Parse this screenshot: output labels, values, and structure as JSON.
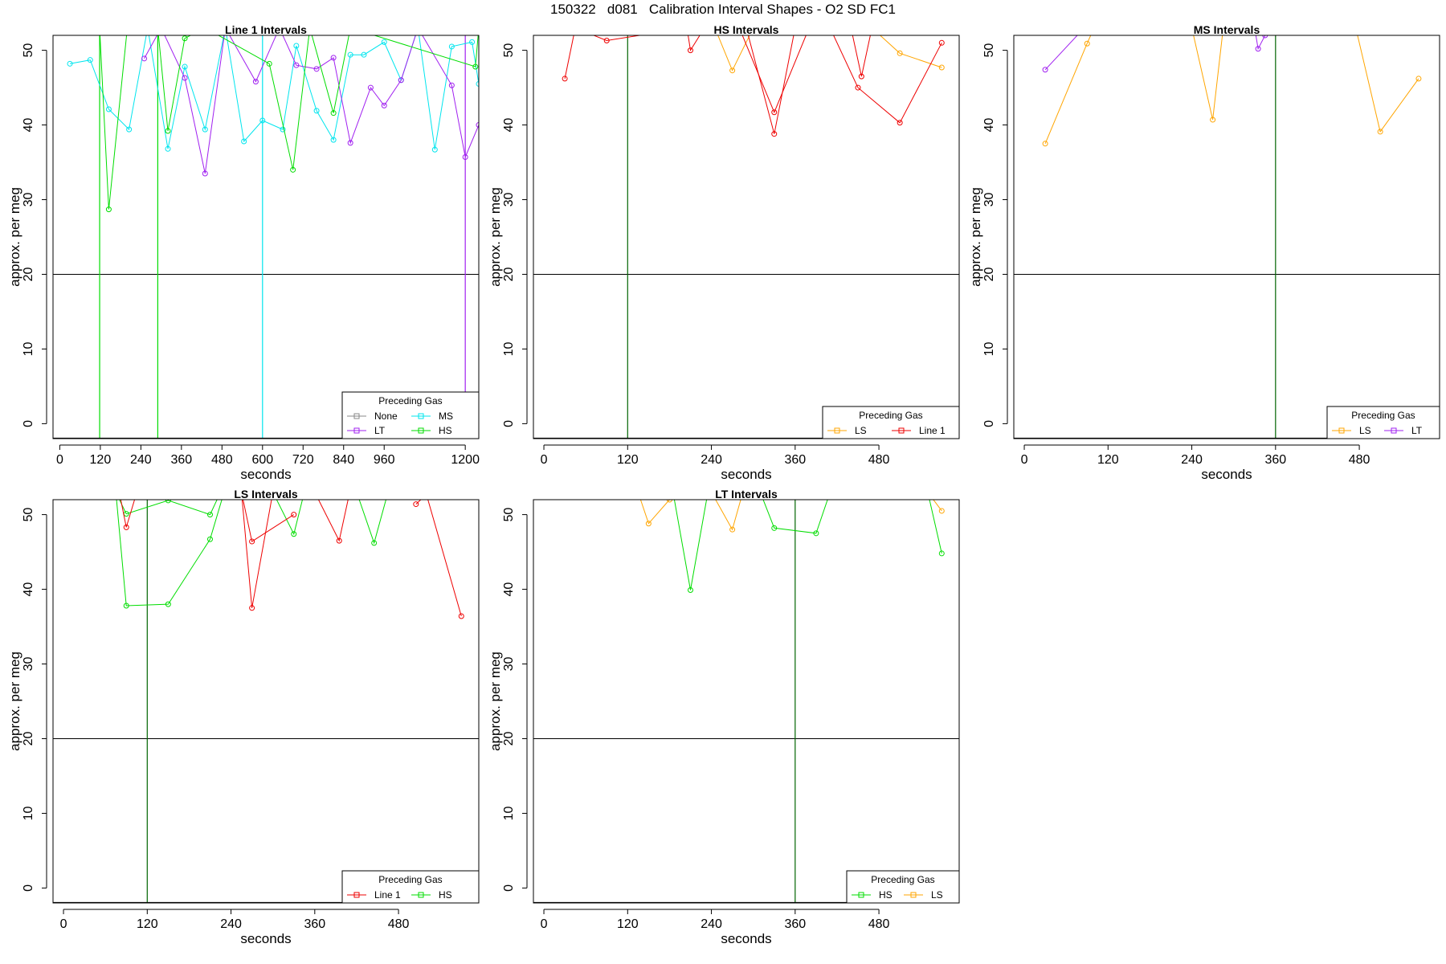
{
  "figure": {
    "title": "150322   d081   Calibration Interval Shapes - O2 SD FC1"
  },
  "colors": {
    "None": "#888888",
    "LT": "#a020f0",
    "MS": "#00e5ee",
    "HS": "#00dd00",
    "LS": "#ffa500",
    "Line 1": "#ee0000",
    "axis": "#000000",
    "hline": "#000000",
    "vline_default": "#006400"
  },
  "chart_data": [
    {
      "type": "line",
      "title": "Line 1 Intervals",
      "xlabel": "seconds",
      "ylabel": "approx. per meg",
      "xlim": [
        -20,
        1240
      ],
      "ylim": [
        -2,
        52
      ],
      "xticks": [
        0,
        120,
        240,
        360,
        480,
        600,
        720,
        840,
        960,
        1200
      ],
      "yticks": [
        0,
        10,
        20,
        30,
        40,
        50
      ],
      "hline": 20,
      "vlines": [
        {
          "x": 118,
          "series": "HS"
        },
        {
          "x": 290,
          "series": "HS"
        },
        {
          "x": 600,
          "series": "MS"
        },
        {
          "x": 1200,
          "series": "LT"
        }
      ],
      "legend": {
        "title": "Preceding Gas",
        "position": "bottom-right",
        "columns": 2,
        "entries": [
          "None",
          "LT",
          "MS",
          "HS"
        ]
      },
      "series": [
        {
          "name": "MS",
          "x": [
            30,
            90,
            145,
            205,
            260,
            320,
            370,
            430,
            490,
            545,
            600,
            660,
            700,
            760,
            810,
            860,
            900,
            960,
            1010,
            1060,
            1110,
            1160,
            1220,
            1240
          ],
          "y": [
            48.2,
            48.7,
            42.1,
            39.4,
            53,
            36.8,
            47.8,
            39.4,
            53,
            37.8,
            40.6,
            39.4,
            50.6,
            41.9,
            38,
            49.4,
            49.4,
            51.1,
            46,
            53,
            36.7,
            50.5,
            51.1,
            45.5
          ]
        },
        {
          "name": "LT",
          "x": [
            250,
            300,
            370,
            430,
            490,
            580,
            650,
            700,
            760,
            810,
            860,
            920,
            960,
            1010,
            1060,
            1160,
            1200,
            1240
          ],
          "y": [
            48.9,
            53,
            46.3,
            33.5,
            53,
            45.8,
            53,
            48,
            47.5,
            49,
            37.6,
            45,
            42.6,
            46,
            53,
            45.3,
            35.7,
            40
          ]
        },
        {
          "name": "HS",
          "x": [
            118,
            145,
            200,
            290,
            320,
            370,
            430,
            620,
            690,
            740,
            810,
            860,
            1230,
            1240
          ],
          "y": [
            53,
            28.7,
            53,
            53,
            39.2,
            51.6,
            53,
            48.2,
            34,
            53,
            41.6,
            53,
            47.8,
            53
          ]
        }
      ]
    },
    {
      "type": "line",
      "title": "HS Intervals",
      "xlabel": "seconds",
      "ylabel": "approx. per meg",
      "xlim": [
        -15,
        595
      ],
      "ylim": [
        -2,
        52
      ],
      "xticks": [
        0,
        120,
        240,
        360,
        480
      ],
      "yticks": [
        0,
        10,
        20,
        30,
        40,
        50
      ],
      "hline": 20,
      "vlines": [
        {
          "x": 120,
          "series": "default"
        }
      ],
      "legend": {
        "title": "Preceding Gas",
        "position": "bottom-right",
        "columns": 2,
        "entries": [
          "LS",
          "Line 1"
        ]
      },
      "series": [
        {
          "name": "LS",
          "x": [
            245,
            270,
            300,
            470,
            510,
            570
          ],
          "y": [
            53,
            47.3,
            53,
            53,
            49.6,
            47.7
          ]
        },
        {
          "name": "Line 1",
          "x": [
            30,
            45,
            90,
            205,
            210,
            230,
            290,
            330,
            360,
            410,
            450,
            510,
            570
          ],
          "y": [
            46.2,
            53,
            51.3,
            53,
            50,
            53,
            53,
            38.8,
            53,
            53,
            45,
            40.3,
            51
          ]
        },
        {
          "name": "Line 1",
          "x": [
            280,
            330,
            380,
            440,
            455,
            470
          ],
          "y": [
            53,
            41.7,
            53,
            53,
            46.5,
            53
          ]
        }
      ]
    },
    {
      "type": "line",
      "title": "MS Intervals",
      "xlabel": "seconds",
      "ylabel": "approx. per meg",
      "xlim": [
        -15,
        595
      ],
      "ylim": [
        -2,
        52
      ],
      "xticks": [
        0,
        120,
        240,
        360,
        480
      ],
      "yticks": [
        0,
        10,
        20,
        30,
        40,
        50
      ],
      "hline": 20,
      "vlines": [
        {
          "x": 360,
          "series": "default"
        }
      ],
      "legend": {
        "title": "Preceding Gas",
        "position": "bottom-right",
        "columns": 2,
        "entries": [
          "LS",
          "LT"
        ]
      },
      "series": [
        {
          "name": "LS",
          "x": [
            30,
            90,
            100,
            240,
            270,
            285,
            475,
            510,
            565
          ],
          "y": [
            37.5,
            50.9,
            53,
            53,
            40.7,
            53,
            53,
            39.1,
            46.2
          ]
        },
        {
          "name": "LT",
          "x": [
            30,
            80,
            330,
            335,
            345
          ],
          "y": [
            47.4,
            52.4,
            53,
            50.2,
            52
          ]
        }
      ]
    },
    {
      "type": "line",
      "title": "LS Intervals",
      "xlabel": "seconds",
      "ylabel": "approx. per meg",
      "xlim": [
        -15,
        595
      ],
      "ylim": [
        -2,
        52
      ],
      "xticks": [
        0,
        120,
        240,
        360,
        480
      ],
      "yticks": [
        0,
        10,
        20,
        30,
        40,
        50
      ],
      "hline": 20,
      "vlines": [
        {
          "x": 120,
          "series": "default"
        }
      ],
      "legend": {
        "title": "Preceding Gas",
        "position": "bottom-right",
        "columns": 2,
        "entries": [
          "Line 1",
          "HS"
        ]
      },
      "series": [
        {
          "name": "HS",
          "x": [
            75,
            90,
            150,
            210,
            225
          ],
          "y": [
            53,
            50.1,
            51.9,
            50,
            53
          ]
        },
        {
          "name": "HS",
          "x": [
            75,
            90,
            150,
            210,
            230
          ],
          "y": [
            53,
            37.8,
            38,
            46.7,
            53
          ]
        },
        {
          "name": "HS",
          "x": [
            300,
            330,
            345,
            420,
            445,
            465
          ],
          "y": [
            53,
            47.4,
            53,
            53,
            46.2,
            53
          ]
        },
        {
          "name": "Line 1",
          "x": [
            80,
            90,
            105
          ],
          "y": [
            53,
            48.3,
            53
          ]
        },
        {
          "name": "Line 1",
          "x": [
            255,
            270,
            330
          ],
          "y": [
            53,
            46.4,
            50
          ]
        },
        {
          "name": "Line 1",
          "x": [
            255,
            270,
            300,
            360,
            395,
            410
          ],
          "y": [
            53,
            37.5,
            53,
            53,
            46.5,
            53
          ]
        },
        {
          "name": "Line 1",
          "x": [
            505,
            520,
            570
          ],
          "y": [
            51.4,
            52.7,
            36.4
          ]
        }
      ]
    },
    {
      "type": "line",
      "title": "LT Intervals",
      "xlabel": "seconds",
      "ylabel": "approx. per meg",
      "xlim": [
        -15,
        595
      ],
      "ylim": [
        -2,
        52
      ],
      "xticks": [
        0,
        120,
        240,
        360,
        480
      ],
      "yticks": [
        0,
        10,
        20,
        30,
        40,
        50
      ],
      "hline": 20,
      "vlines": [
        {
          "x": 360,
          "series": "default"
        }
      ],
      "legend": {
        "title": "Preceding Gas",
        "position": "bottom-right",
        "columns": 2,
        "entries": [
          "HS",
          "LS"
        ]
      },
      "series": [
        {
          "name": "LS",
          "x": [
            135,
            150,
            180,
            240,
            270,
            285
          ],
          "y": [
            53,
            48.8,
            52,
            53,
            48,
            53
          ]
        },
        {
          "name": "LS",
          "x": [
            550,
            570
          ],
          "y": [
            53,
            50.5
          ]
        },
        {
          "name": "HS",
          "x": [
            185,
            210,
            235,
            310,
            330,
            390,
            410,
            550,
            570
          ],
          "y": [
            53,
            39.9,
            53,
            53,
            48.2,
            47.5,
            53,
            53,
            44.8
          ]
        }
      ]
    }
  ]
}
